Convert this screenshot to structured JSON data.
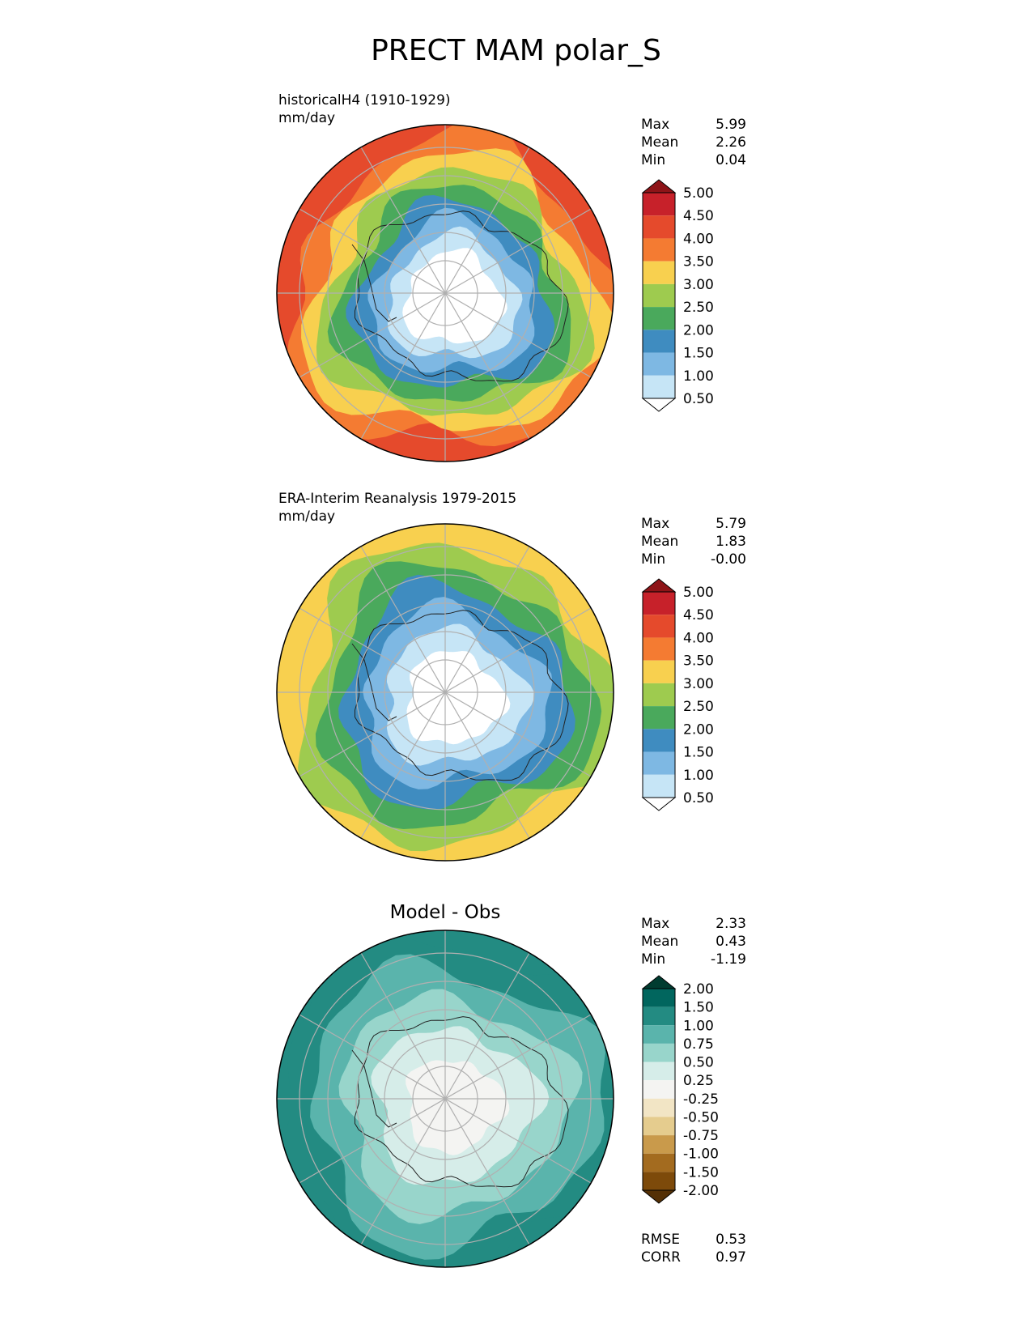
{
  "title": "PRECT MAM polar_S",
  "panels": [
    {
      "subtitle_line1": "historicalH4 (1910-1929)",
      "subtitle_line2": "mm/day",
      "stats": [
        {
          "label": "Max",
          "value": "5.99"
        },
        {
          "label": "Mean",
          "value": "2.26"
        },
        {
          "label": "Min",
          "value": "0.04"
        }
      ],
      "colorbar": {
        "ticks": [
          "5.00",
          "4.50",
          "4.00",
          "3.50",
          "3.00",
          "2.50",
          "2.00",
          "1.50",
          "1.00",
          "0.50"
        ],
        "colors": [
          "#8e1418",
          "#c7212a",
          "#e54a2c",
          "#f47b32",
          "#f8d04f",
          "#9ecb4f",
          "#4aa95c",
          "#3f8cc0",
          "#7eb8e3",
          "#c6e5f6",
          "#ffffff"
        ]
      },
      "map": {
        "colors": [
          "#ffffff",
          "#c6e5f6",
          "#7eb8e3",
          "#3f8cc0",
          "#4aa95c",
          "#9ecb4f",
          "#f8d04f",
          "#f47b32",
          "#e54a2c"
        ]
      }
    },
    {
      "subtitle_line1": "ERA-Interim Reanalysis 1979-2015",
      "subtitle_line2": "mm/day",
      "stats": [
        {
          "label": "Max",
          "value": "5.79"
        },
        {
          "label": "Mean",
          "value": "1.83"
        },
        {
          "label": "Min",
          "value": "-0.00"
        }
      ],
      "colorbar": {
        "ticks": [
          "5.00",
          "4.50",
          "4.00",
          "3.50",
          "3.00",
          "2.50",
          "2.00",
          "1.50",
          "1.00",
          "0.50"
        ],
        "colors": [
          "#8e1418",
          "#c7212a",
          "#e54a2c",
          "#f47b32",
          "#f8d04f",
          "#9ecb4f",
          "#4aa95c",
          "#3f8cc0",
          "#7eb8e3",
          "#c6e5f6",
          "#ffffff"
        ]
      },
      "map": {
        "colors": [
          "#ffffff",
          "#c6e5f6",
          "#7eb8e3",
          "#3f8cc0",
          "#4aa95c",
          "#9ecb4f",
          "#f8d04f"
        ]
      }
    },
    {
      "center_title": "Model - Obs",
      "stats": [
        {
          "label": "Max",
          "value": "2.33"
        },
        {
          "label": "Mean",
          "value": "0.43"
        },
        {
          "label": "Min",
          "value": "-1.19"
        }
      ],
      "bottom_stats": [
        {
          "label": "RMSE",
          "value": "0.53"
        },
        {
          "label": "CORR",
          "value": "0.97"
        }
      ],
      "colorbar": {
        "ticks": [
          "2.00",
          "1.50",
          "1.00",
          "0.75",
          "0.50",
          "0.25",
          "-0.25",
          "-0.50",
          "-0.75",
          "-1.00",
          "-1.50",
          "-2.00"
        ],
        "colors": [
          "#003c30",
          "#01665e",
          "#238b82",
          "#5ab4ac",
          "#98d5cb",
          "#d6ede9",
          "#f4f4f2",
          "#f2e5c5",
          "#e5cc8e",
          "#c99a4b",
          "#a36b1f",
          "#7d4a0a",
          "#543005"
        ]
      },
      "map": {
        "colors": [
          "#f4f4f2",
          "#d6ede9",
          "#98d5cb",
          "#5ab4ac",
          "#238b82"
        ]
      }
    }
  ]
}
